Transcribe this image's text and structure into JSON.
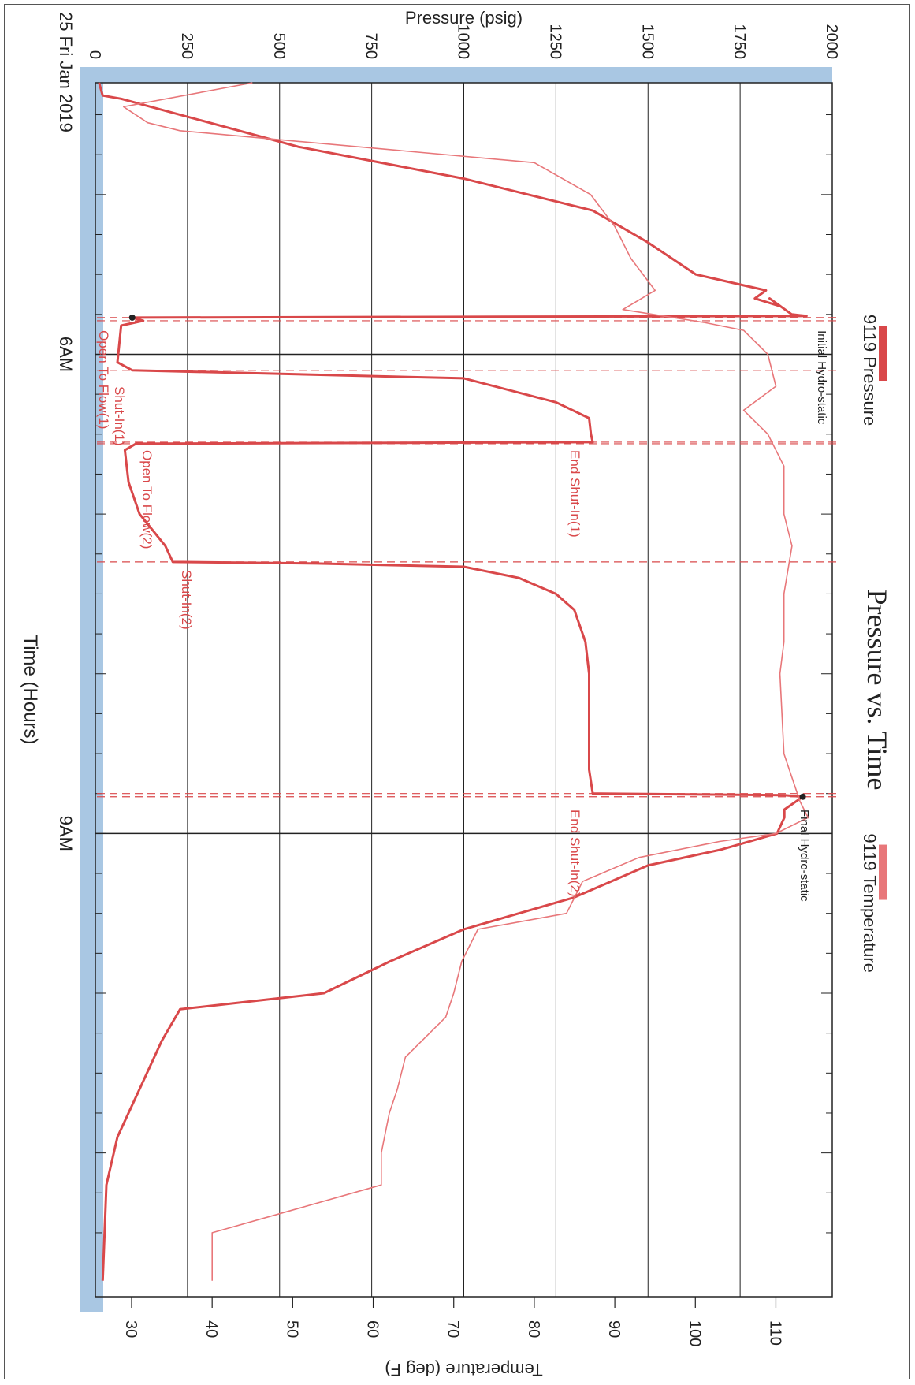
{
  "chart_data": {
    "type": "line",
    "title": "Pressure vs. Time",
    "date_label": "25 Fri Jan 2019",
    "xlabel": "Time (Hours)",
    "ylabel_left": "Pressure (psig)",
    "ylabel_right": "Temperature (deg F)",
    "x_ticks": [
      "6AM",
      "9AM"
    ],
    "xlim_hours": [
      4.3,
      11.9
    ],
    "pressure_ticks": [
      "0",
      "250",
      "500",
      "750",
      "1000",
      "1250",
      "1500",
      "1750",
      "2000"
    ],
    "pressure_lim": [
      0,
      2000
    ],
    "temperature_ticks": [
      "30",
      "40",
      "50",
      "60",
      "70",
      "80",
      "90",
      "100",
      "110"
    ],
    "temperature_lim": [
      25.5,
      117
    ],
    "legend": "top",
    "colors": {
      "pressure": "#d9484a",
      "temperature": "#e8777a",
      "axis_band": "#a9c7e3",
      "events": "#d9484a"
    },
    "series": [
      {
        "name": "9119 Pressure",
        "x": [
          4.3,
          4.38,
          4.4,
          4.7,
          4.9,
          5.1,
          5.3,
          5.5,
          5.6,
          5.65,
          5.7,
          5.65,
          5.75,
          5.76,
          5.77,
          5.79,
          5.82,
          6.05,
          6.1,
          6.15,
          6.3,
          6.4,
          6.5,
          6.55,
          6.56,
          6.6,
          6.8,
          7.0,
          7.2,
          7.3,
          7.31,
          7.33,
          7.4,
          7.5,
          7.6,
          7.8,
          8.0,
          8.2,
          8.4,
          8.6,
          8.75,
          8.76,
          8.77,
          8.85,
          8.9,
          9.0,
          9.1,
          9.2,
          9.4,
          9.6,
          9.8,
          10.0,
          10.1,
          10.3,
          10.6,
          10.9,
          11.2,
          11.5,
          11.8
        ],
        "y": [
          10,
          20,
          70,
          550,
          1000,
          1350,
          1500,
          1630,
          1820,
          1790,
          1860,
          1830,
          1890,
          1930,
          100,
          130,
          70,
          60,
          100,
          1000,
          1250,
          1340,
          1345,
          1350,
          110,
          80,
          90,
          120,
          190,
          210,
          600,
          1000,
          1150,
          1250,
          1300,
          1330,
          1340,
          1340,
          1340,
          1340,
          1350,
          1870,
          1920,
          1870,
          1870,
          1850,
          1700,
          1500,
          1300,
          1000,
          800,
          620,
          230,
          180,
          120,
          60,
          30,
          25,
          20
        ]
      },
      {
        "name": "9119 Temperature",
        "x": [
          4.3,
          4.45,
          4.55,
          4.6,
          4.8,
          5.0,
          5.2,
          5.4,
          5.6,
          5.72,
          5.8,
          5.85,
          6.0,
          6.2,
          6.35,
          6.5,
          6.7,
          7.0,
          7.2,
          7.5,
          7.8,
          8.0,
          8.5,
          8.8,
          8.9,
          9.0,
          9.05,
          9.15,
          9.3,
          9.5,
          9.6,
          9.8,
          10.0,
          10.15,
          10.4,
          10.6,
          10.75,
          11.0,
          11.2,
          11.5,
          11.8
        ],
        "y": [
          45,
          29,
          32,
          36,
          80,
          87,
          90,
          92,
          95,
          91,
          101,
          106,
          109,
          110,
          106,
          109,
          111,
          111,
          112,
          111,
          111,
          110.5,
          111,
          113,
          114,
          110,
          103,
          93,
          86,
          84,
          73,
          71,
          70,
          69,
          64,
          63,
          62,
          61,
          61,
          40,
          40
        ]
      }
    ],
    "events": [
      {
        "label": "Initial Hydro-static",
        "x": 5.77
      },
      {
        "label": "Open To Flow(1)",
        "x": 5.79
      },
      {
        "label": "Shut-In(1)",
        "x": 6.1
      },
      {
        "label": "End Shut-In(1)",
        "x": 6.55
      },
      {
        "label": "Open To Flow(2)",
        "x": 6.56
      },
      {
        "label": "Shut-In(2)",
        "x": 7.3
      },
      {
        "label": "End Shut-In(2)",
        "x": 8.75
      },
      {
        "label": "Final Hydro-static",
        "x": 8.77
      }
    ]
  }
}
